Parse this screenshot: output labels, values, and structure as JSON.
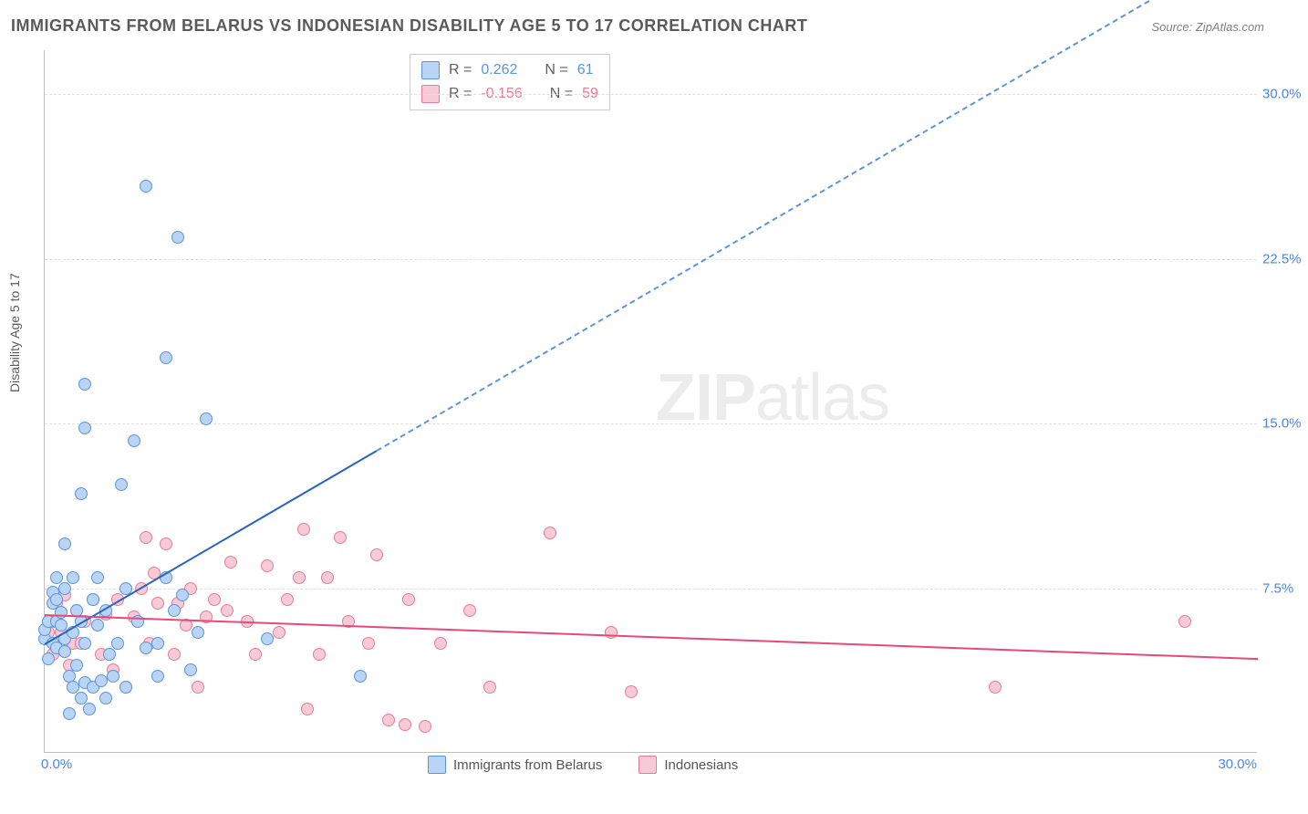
{
  "title": "IMMIGRANTS FROM BELARUS VS INDONESIAN DISABILITY AGE 5 TO 17 CORRELATION CHART",
  "source": "Source: ZipAtlas.com",
  "y_axis_label": "Disability Age 5 to 17",
  "watermark_bold": "ZIP",
  "watermark_rest": "atlas",
  "chart": {
    "type": "scatter",
    "background_color": "#ffffff",
    "grid_color": "#e0e0e0",
    "axis_color": "#bfbfbf",
    "xlim": [
      0,
      30
    ],
    "ylim": [
      0,
      32
    ],
    "y_ticks": [
      7.5,
      15.0,
      22.5,
      30.0
    ],
    "y_tick_labels": [
      "7.5%",
      "15.0%",
      "22.5%",
      "30.0%"
    ],
    "x_tick_min_label": "0.0%",
    "x_tick_max_label": "30.0%",
    "tick_color": "#4a86e8",
    "tick_fontsize": 15
  },
  "series": [
    {
      "name": "Immigrants from Belarus",
      "fill_color": "#b9d4f4",
      "stroke_color": "#5b95dd",
      "r_label": "R =",
      "r_value": "0.262",
      "n_label": "N =",
      "n_value": "61",
      "trend": {
        "solid_color": "#2a64c2",
        "dash_color": "#5b95dd",
        "x1": 0,
        "y1": 5.0,
        "x_solid_end": 8.2,
        "y_solid_end": 13.8,
        "x2": 27.5,
        "y2": 34.5
      },
      "points": [
        [
          0.0,
          5.2
        ],
        [
          0.0,
          5.6
        ],
        [
          0.1,
          4.3
        ],
        [
          0.1,
          6.0
        ],
        [
          0.2,
          5.0
        ],
        [
          0.2,
          6.8
        ],
        [
          0.2,
          7.3
        ],
        [
          0.3,
          4.8
        ],
        [
          0.3,
          6.0
        ],
        [
          0.3,
          7.0
        ],
        [
          0.3,
          8.0
        ],
        [
          0.4,
          5.8
        ],
        [
          0.4,
          6.4
        ],
        [
          0.5,
          4.6
        ],
        [
          0.5,
          5.2
        ],
        [
          0.5,
          7.5
        ],
        [
          0.5,
          9.5
        ],
        [
          0.6,
          1.8
        ],
        [
          0.6,
          3.5
        ],
        [
          0.7,
          3.0
        ],
        [
          0.7,
          5.5
        ],
        [
          0.7,
          8.0
        ],
        [
          0.8,
          4.0
        ],
        [
          0.8,
          6.5
        ],
        [
          0.9,
          2.5
        ],
        [
          0.9,
          6.0
        ],
        [
          0.9,
          11.8
        ],
        [
          1.0,
          3.2
        ],
        [
          1.0,
          5.0
        ],
        [
          1.0,
          14.8
        ],
        [
          1.0,
          16.8
        ],
        [
          1.1,
          2.0
        ],
        [
          1.2,
          3.0
        ],
        [
          1.2,
          7.0
        ],
        [
          1.3,
          5.8
        ],
        [
          1.3,
          8.0
        ],
        [
          1.4,
          3.3
        ],
        [
          1.5,
          2.5
        ],
        [
          1.5,
          6.5
        ],
        [
          1.6,
          4.5
        ],
        [
          1.7,
          3.5
        ],
        [
          1.8,
          5.0
        ],
        [
          1.9,
          12.2
        ],
        [
          2.0,
          3.0
        ],
        [
          2.0,
          7.5
        ],
        [
          2.2,
          14.2
        ],
        [
          2.3,
          6.0
        ],
        [
          2.5,
          4.8
        ],
        [
          2.5,
          25.8
        ],
        [
          2.8,
          3.5
        ],
        [
          2.8,
          5.0
        ],
        [
          3.0,
          8.0
        ],
        [
          3.0,
          18.0
        ],
        [
          3.2,
          6.5
        ],
        [
          3.3,
          23.5
        ],
        [
          3.4,
          7.2
        ],
        [
          3.6,
          3.8
        ],
        [
          3.8,
          5.5
        ],
        [
          4.0,
          15.2
        ],
        [
          5.5,
          5.2
        ],
        [
          7.8,
          3.5
        ]
      ]
    },
    {
      "name": "Indonesians",
      "fill_color": "#f7cbd5",
      "stroke_color": "#e97a9b",
      "r_label": "R =",
      "r_value": "-0.156",
      "n_label": "N =",
      "n_value": "59",
      "trend": {
        "solid_color": "#e8487a",
        "x1": 0,
        "y1": 6.3,
        "x2": 30,
        "y2": 4.3
      },
      "points": [
        [
          0.1,
          5.5
        ],
        [
          0.2,
          4.5
        ],
        [
          0.2,
          6.0
        ],
        [
          0.3,
          6.8
        ],
        [
          0.4,
          5.5
        ],
        [
          0.5,
          7.2
        ],
        [
          0.6,
          4.0
        ],
        [
          0.7,
          5.0
        ],
        [
          0.8,
          6.5
        ],
        [
          0.9,
          5.0
        ],
        [
          1.0,
          6.0
        ],
        [
          1.2,
          7.0
        ],
        [
          1.4,
          4.5
        ],
        [
          1.5,
          6.3
        ],
        [
          1.7,
          3.8
        ],
        [
          1.8,
          7.0
        ],
        [
          2.0,
          3.0
        ],
        [
          2.2,
          6.2
        ],
        [
          2.4,
          7.5
        ],
        [
          2.5,
          9.8
        ],
        [
          2.6,
          5.0
        ],
        [
          2.7,
          8.2
        ],
        [
          2.8,
          6.8
        ],
        [
          3.0,
          9.5
        ],
        [
          3.2,
          4.5
        ],
        [
          3.3,
          6.8
        ],
        [
          3.5,
          5.8
        ],
        [
          3.6,
          7.5
        ],
        [
          3.8,
          3.0
        ],
        [
          4.0,
          6.2
        ],
        [
          4.2,
          7.0
        ],
        [
          4.5,
          6.5
        ],
        [
          4.6,
          8.7
        ],
        [
          5.0,
          6.0
        ],
        [
          5.2,
          4.5
        ],
        [
          5.5,
          8.5
        ],
        [
          5.8,
          5.5
        ],
        [
          6.0,
          7.0
        ],
        [
          6.3,
          8.0
        ],
        [
          6.4,
          10.2
        ],
        [
          6.5,
          2.0
        ],
        [
          6.8,
          4.5
        ],
        [
          7.0,
          8.0
        ],
        [
          7.3,
          9.8
        ],
        [
          7.5,
          6.0
        ],
        [
          8.0,
          5.0
        ],
        [
          8.2,
          9.0
        ],
        [
          8.5,
          1.5
        ],
        [
          8.9,
          1.3
        ],
        [
          9.0,
          7.0
        ],
        [
          9.4,
          1.2
        ],
        [
          9.8,
          5.0
        ],
        [
          10.5,
          6.5
        ],
        [
          11.0,
          3.0
        ],
        [
          12.5,
          10.0
        ],
        [
          14.0,
          5.5
        ],
        [
          14.5,
          2.8
        ],
        [
          23.5,
          3.0
        ],
        [
          28.2,
          6.0
        ]
      ]
    }
  ],
  "legend_bottom": {
    "series1_label": "Immigrants from Belarus",
    "series2_label": "Indonesians"
  }
}
